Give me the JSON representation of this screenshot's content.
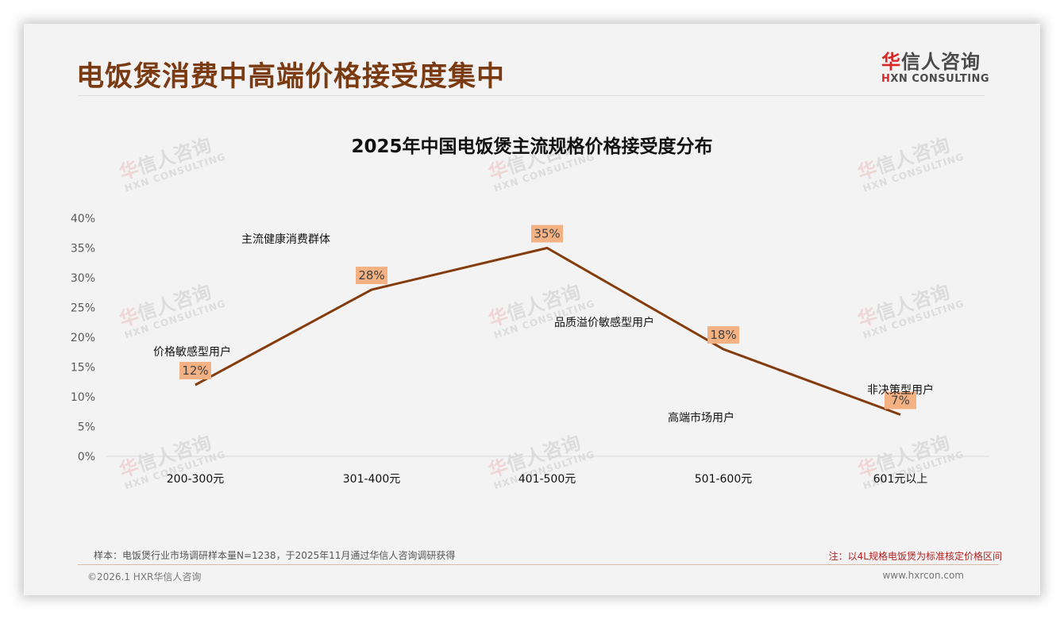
{
  "page": {
    "title": "电饭煲消费中高端价格接受度集中"
  },
  "logo": {
    "cn_first": "华",
    "cn_rest": "信人咨询",
    "en_first": "H",
    "en_rest": "XN CONSULTING"
  },
  "watermark": {
    "cn_first": "华",
    "cn_rest": "信人咨询",
    "en": "HXN CONSULTING"
  },
  "chart_data": {
    "type": "line",
    "title": "2025年中国电饭煲主流规格价格接受度分布",
    "xlabel": "",
    "ylabel": "",
    "categories": [
      "200-300元",
      "301-400元",
      "401-500元",
      "501-600元",
      "601元以上"
    ],
    "series": [
      {
        "name": "价格接受度",
        "values": [
          12,
          28,
          35,
          18,
          7
        ],
        "color": "#843c0c"
      }
    ],
    "data_labels": [
      "12%",
      "28%",
      "35%",
      "18%",
      "7%"
    ],
    "data_label_bg": "#f4b183",
    "yticks": [
      "0%",
      "5%",
      "10%",
      "15%",
      "20%",
      "25%",
      "30%",
      "35%",
      "40%"
    ],
    "ylim": [
      0,
      40
    ],
    "grid": false,
    "legend": "none",
    "annotations": [
      {
        "text": "价格敏感型用户",
        "category": "200-300元"
      },
      {
        "text": "主流健康消费群体",
        "category": "301-400元"
      },
      {
        "text": "品质溢价敏感型用户",
        "category": "401-500元"
      },
      {
        "text": "高端市场用户",
        "category": "501-600元"
      },
      {
        "text": "非决策型用户",
        "category": "601元以上"
      }
    ]
  },
  "footer": {
    "sample_note": "样本：电饭煲行业市场调研样本量N=1238，于2025年11月通过华信人咨询调研获得",
    "spec_note": "注：以4L规格电饭煲为标准核定价格区间",
    "copyright": "©2026.1 HXR华信人咨询",
    "website": "www.hxrcon.com"
  }
}
